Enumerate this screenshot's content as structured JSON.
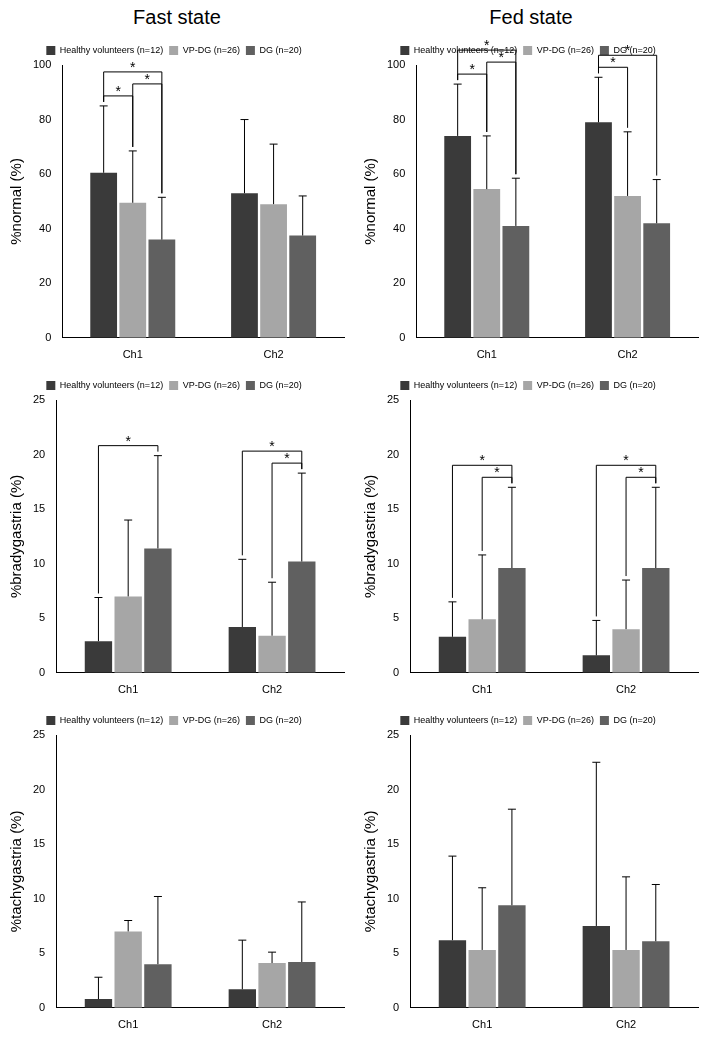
{
  "column_titles": [
    "Fast state",
    "Fed state"
  ],
  "chart_data": [
    {
      "type": "bar",
      "y_label": "%normal (%)",
      "categories": [
        "Ch1",
        "Ch2"
      ],
      "series": [
        {
          "name": "Healthy volunteers (n=12)",
          "color": "#3a3a3a",
          "values": [
            60.5,
            53
          ],
          "errors": [
            24.5,
            27
          ]
        },
        {
          "name": "VP-DG (n=26)",
          "color": "#a6a6a6",
          "values": [
            49.5,
            49
          ],
          "errors": [
            19,
            22
          ]
        },
        {
          "name": "DG (n=20)",
          "color": "#606060",
          "values": [
            36,
            37.5
          ],
          "errors": [
            15.5,
            14.5
          ]
        }
      ],
      "ylim": [
        0,
        100
      ],
      "yticks": [
        0,
        20,
        40,
        60,
        80,
        100
      ],
      "grid": false,
      "legend": "top",
      "significance": [
        {
          "category": "Ch1",
          "between": [
            "Healthy volunteers (n=12)",
            "VP-DG (n=26)"
          ],
          "label": "*"
        },
        {
          "category": "Ch1",
          "between": [
            "VP-DG (n=26)",
            "DG (n=20)"
          ],
          "label": "*"
        },
        {
          "category": "Ch1",
          "between": [
            "Healthy volunteers (n=12)",
            "DG (n=20)"
          ],
          "label": "*"
        }
      ]
    },
    {
      "type": "bar",
      "y_label": "%normal (%)",
      "categories": [
        "Ch1",
        "Ch2"
      ],
      "series": [
        {
          "name": "Healthy volunteers (n=12)",
          "color": "#3a3a3a",
          "values": [
            74,
            79
          ],
          "errors": [
            19,
            16.5
          ]
        },
        {
          "name": "VP-DG (n=26)",
          "color": "#a6a6a6",
          "values": [
            54.5,
            52
          ],
          "errors": [
            19.5,
            23.5
          ]
        },
        {
          "name": "DG (n=20)",
          "color": "#606060",
          "values": [
            41,
            42
          ],
          "errors": [
            17.5,
            16
          ]
        }
      ],
      "ylim": [
        0,
        100
      ],
      "yticks": [
        0,
        20,
        40,
        60,
        80,
        100
      ],
      "grid": false,
      "legend": "top",
      "significance": [
        {
          "category": "Ch1",
          "between": [
            "Healthy volunteers (n=12)",
            "VP-DG (n=26)"
          ],
          "label": "*"
        },
        {
          "category": "Ch1",
          "between": [
            "VP-DG (n=26)",
            "DG (n=20)"
          ],
          "label": "*"
        },
        {
          "category": "Ch1",
          "between": [
            "Healthy volunteers (n=12)",
            "DG (n=20)"
          ],
          "label": "*"
        },
        {
          "category": "Ch2",
          "between": [
            "Healthy volunteers (n=12)",
            "VP-DG (n=26)"
          ],
          "label": "*"
        },
        {
          "category": "Ch2",
          "between": [
            "Healthy volunteers (n=12)",
            "DG (n=20)"
          ],
          "label": "*"
        }
      ]
    },
    {
      "type": "bar",
      "y_label": "%bradygastria (%)",
      "categories": [
        "Ch1",
        "Ch2"
      ],
      "series": [
        {
          "name": "Healthy volunteers (n=12)",
          "color": "#3a3a3a",
          "values": [
            2.9,
            4.2
          ],
          "errors": [
            4,
            6.2
          ]
        },
        {
          "name": "VP-DG (n=26)",
          "color": "#a6a6a6",
          "values": [
            7,
            3.4
          ],
          "errors": [
            7,
            4.9
          ]
        },
        {
          "name": "DG (n=20)",
          "color": "#606060",
          "values": [
            11.4,
            10.2
          ],
          "errors": [
            8.5,
            8.1
          ]
        }
      ],
      "ylim": [
        0,
        25
      ],
      "yticks": [
        0,
        5,
        10,
        15,
        20,
        25
      ],
      "grid": false,
      "legend": "top",
      "significance": [
        {
          "category": "Ch1",
          "between": [
            "Healthy volunteers (n=12)",
            "DG (n=20)"
          ],
          "label": "*"
        },
        {
          "category": "Ch2",
          "between": [
            "VP-DG (n=26)",
            "DG (n=20)"
          ],
          "label": "*"
        },
        {
          "category": "Ch2",
          "between": [
            "Healthy volunteers (n=12)",
            "DG (n=20)"
          ],
          "label": "*"
        }
      ]
    },
    {
      "type": "bar",
      "y_label": "%bradygastria (%)",
      "categories": [
        "Ch1",
        "Ch2"
      ],
      "series": [
        {
          "name": "Healthy volunteers (n=12)",
          "color": "#3a3a3a",
          "values": [
            3.3,
            1.6
          ],
          "errors": [
            3.2,
            3.2
          ]
        },
        {
          "name": "VP-DG (n=26)",
          "color": "#a6a6a6",
          "values": [
            4.9,
            4
          ],
          "errors": [
            5.9,
            4.5
          ]
        },
        {
          "name": "DG (n=20)",
          "color": "#606060",
          "values": [
            9.6,
            9.6
          ],
          "errors": [
            7.4,
            7.4
          ]
        }
      ],
      "ylim": [
        0,
        25
      ],
      "yticks": [
        0,
        5,
        10,
        15,
        20,
        25
      ],
      "grid": false,
      "legend": "top",
      "significance": [
        {
          "category": "Ch1",
          "between": [
            "VP-DG (n=26)",
            "DG (n=20)"
          ],
          "label": "*"
        },
        {
          "category": "Ch1",
          "between": [
            "Healthy volunteers (n=12)",
            "DG (n=20)"
          ],
          "label": "*"
        },
        {
          "category": "Ch2",
          "between": [
            "VP-DG (n=26)",
            "DG (n=20)"
          ],
          "label": "*"
        },
        {
          "category": "Ch2",
          "between": [
            "Healthy volunteers (n=12)",
            "DG (n=20)"
          ],
          "label": "*"
        }
      ]
    },
    {
      "type": "bar",
      "y_label": "%tachygastria (%)",
      "categories": [
        "Ch1",
        "Ch2"
      ],
      "series": [
        {
          "name": "Healthy volunteers (n=12)",
          "color": "#3a3a3a",
          "values": [
            0.8,
            1.7
          ],
          "errors": [
            2,
            4.5
          ]
        },
        {
          "name": "VP-DG (n=26)",
          "color": "#a6a6a6",
          "values": [
            7,
            4.1
          ],
          "errors": [
            1,
            1
          ]
        },
        {
          "name": "DG (n=20)",
          "color": "#606060",
          "values": [
            4,
            4.2
          ],
          "errors": [
            6.2,
            5.5
          ]
        }
      ],
      "ylim": [
        0,
        25
      ],
      "yticks": [
        0,
        5,
        10,
        15,
        20,
        25
      ],
      "grid": false,
      "legend": "top",
      "significance": []
    },
    {
      "type": "bar",
      "y_label": "%tachygastria (%)",
      "categories": [
        "Ch1",
        "Ch2"
      ],
      "series": [
        {
          "name": "Healthy volunteers (n=12)",
          "color": "#3a3a3a",
          "values": [
            6.2,
            7.5
          ],
          "errors": [
            7.7,
            15
          ]
        },
        {
          "name": "VP-DG (n=26)",
          "color": "#a6a6a6",
          "values": [
            5.3,
            5.3
          ],
          "errors": [
            5.7,
            6.7
          ]
        },
        {
          "name": "DG (n=20)",
          "color": "#606060",
          "values": [
            9.4,
            6.1
          ],
          "errors": [
            8.8,
            5.2
          ]
        }
      ],
      "ylim": [
        0,
        25
      ],
      "yticks": [
        0,
        5,
        10,
        15,
        20,
        25
      ],
      "grid": false,
      "legend": "top",
      "significance": []
    }
  ]
}
